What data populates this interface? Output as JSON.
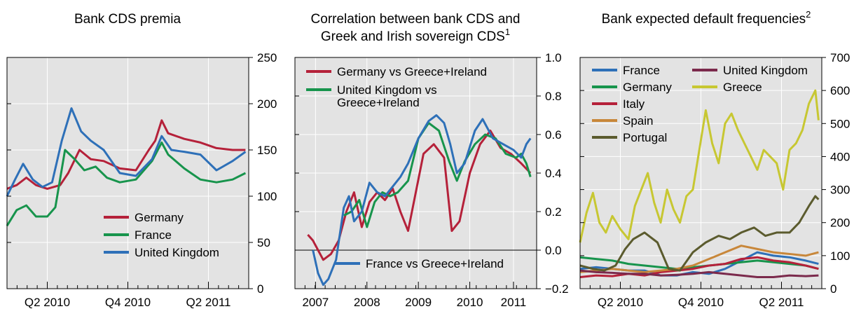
{
  "chart_data": [
    {
      "type": "line",
      "title": "Bank CDS premia",
      "title_superscript": "",
      "x_ticks": [
        "Q2 2010",
        "Q4 2010",
        "Q2 2011"
      ],
      "xlim": [
        2010.0,
        2011.5
      ],
      "ylim": [
        0,
        250
      ],
      "y_ticks": [
        0,
        50,
        100,
        150,
        200,
        250
      ],
      "y_axis": "right",
      "grid": true,
      "legend": "bottom-center",
      "series": [
        {
          "name": "Germany",
          "color": "#b5213a",
          "x": [
            2010.0,
            2010.06,
            2010.12,
            2010.18,
            2010.25,
            2010.33,
            2010.38,
            2010.45,
            2010.52,
            2010.6,
            2010.7,
            2010.8,
            2010.88,
            2010.92,
            2010.96,
            2011.0,
            2011.1,
            2011.2,
            2011.3,
            2011.4,
            2011.48
          ],
          "y": [
            108,
            112,
            120,
            112,
            108,
            112,
            125,
            150,
            140,
            138,
            130,
            128,
            150,
            160,
            182,
            168,
            162,
            158,
            152,
            150,
            150
          ]
        },
        {
          "name": "France",
          "color": "#17944c",
          "x": [
            2010.0,
            2010.06,
            2010.12,
            2010.18,
            2010.25,
            2010.3,
            2010.36,
            2010.42,
            2010.48,
            2010.55,
            2010.62,
            2010.7,
            2010.8,
            2010.9,
            2010.96,
            2011.0,
            2011.1,
            2011.2,
            2011.3,
            2011.4,
            2011.48
          ],
          "y": [
            68,
            85,
            90,
            78,
            78,
            88,
            150,
            140,
            128,
            132,
            120,
            115,
            118,
            138,
            158,
            145,
            130,
            118,
            115,
            118,
            125
          ]
        },
        {
          "name": "United Kingdom",
          "color": "#2e70b8",
          "x": [
            2010.0,
            2010.05,
            2010.1,
            2010.16,
            2010.22,
            2010.28,
            2010.34,
            2010.4,
            2010.46,
            2010.52,
            2010.6,
            2010.7,
            2010.8,
            2010.9,
            2010.96,
            2011.02,
            2011.1,
            2011.2,
            2011.3,
            2011.4,
            2011.48
          ],
          "y": [
            100,
            118,
            135,
            118,
            110,
            115,
            160,
            195,
            170,
            160,
            150,
            125,
            122,
            140,
            165,
            150,
            148,
            145,
            128,
            138,
            148
          ]
        }
      ]
    },
    {
      "type": "line",
      "title": "Correlation between bank CDS and Greek and Irish sovereign CDS",
      "title_superscript": "1",
      "x_ticks": [
        "2007",
        "2008",
        "2009",
        "2010",
        "2011"
      ],
      "xlim": [
        2006.6,
        2011.3
      ],
      "ylim": [
        -0.2,
        1.0
      ],
      "y_ticks": [
        -0.2,
        0.0,
        0.2,
        0.4,
        0.6,
        0.8,
        1.0
      ],
      "y_axis": "right",
      "grid": true,
      "legend": "top-left",
      "series": [
        {
          "name": "Germany vs Greece+Ireland",
          "color": "#b5213a",
          "x": [
            2006.85,
            2006.95,
            2007.05,
            2007.15,
            2007.3,
            2007.45,
            2007.6,
            2007.75,
            2007.9,
            2008.05,
            2008.2,
            2008.35,
            2008.5,
            2008.65,
            2008.8,
            2008.95,
            2009.1,
            2009.3,
            2009.5,
            2009.65,
            2009.8,
            2010.0,
            2010.2,
            2010.4,
            2010.6,
            2010.8,
            2011.0,
            2011.18
          ],
          "y": [
            0.08,
            0.05,
            0.0,
            -0.05,
            -0.02,
            0.05,
            0.2,
            0.3,
            0.12,
            0.25,
            0.3,
            0.26,
            0.32,
            0.2,
            0.1,
            0.3,
            0.5,
            0.55,
            0.48,
            0.1,
            0.15,
            0.4,
            0.55,
            0.62,
            0.53,
            0.5,
            0.45,
            0.4
          ]
        },
        {
          "name": "United Kingdom vs Greece+Ireland",
          "color": "#17944c",
          "x": [
            2007.55,
            2007.7,
            2007.85,
            2008.0,
            2008.15,
            2008.3,
            2008.45,
            2008.6,
            2008.8,
            2009.0,
            2009.2,
            2009.4,
            2009.6,
            2009.75,
            2009.9,
            2010.1,
            2010.3,
            2010.5,
            2010.7,
            2010.9,
            2011.0,
            2011.1,
            2011.18
          ],
          "y": [
            0.18,
            0.2,
            0.26,
            0.12,
            0.25,
            0.3,
            0.28,
            0.3,
            0.36,
            0.58,
            0.66,
            0.62,
            0.46,
            0.36,
            0.46,
            0.55,
            0.6,
            0.58,
            0.5,
            0.48,
            0.5,
            0.45,
            0.38
          ]
        }
      ]
    },
    {
      "type": "line",
      "title": "Bank expected default frequencies",
      "title_superscript": "2",
      "x_ticks": [
        "Q2 2010",
        "Q4 2010",
        "Q2 2011"
      ],
      "xlim": [
        2010.0,
        2011.5
      ],
      "ylim": [
        0,
        700
      ],
      "y_ticks": [
        0,
        100,
        200,
        300,
        400,
        500,
        600,
        700
      ],
      "y_axis": "right",
      "grid": true,
      "legend": "top-left",
      "series": [
        {
          "name": "France",
          "color": "#2e70b8",
          "x": [
            2010.0,
            2010.1,
            2010.2,
            2010.3,
            2010.4,
            2010.5,
            2010.6,
            2010.7,
            2010.8,
            2010.9,
            2011.0,
            2011.1,
            2011.2,
            2011.3,
            2011.4,
            2011.48
          ],
          "y": [
            60,
            65,
            60,
            55,
            55,
            40,
            40,
            50,
            45,
            60,
            85,
            110,
            100,
            95,
            85,
            75
          ]
        },
        {
          "name": "Germany",
          "color": "#17944c",
          "x": [
            2010.0,
            2010.1,
            2010.2,
            2010.3,
            2010.4,
            2010.5,
            2010.6,
            2010.7,
            2010.8,
            2010.9,
            2011.0,
            2011.1,
            2011.2,
            2011.3,
            2011.4,
            2011.48
          ],
          "y": [
            95,
            90,
            85,
            75,
            70,
            65,
            60,
            65,
            70,
            75,
            80,
            85,
            80,
            75,
            70,
            60
          ]
        },
        {
          "name": "Italy",
          "color": "#b5213a",
          "x": [
            2010.0,
            2010.1,
            2010.2,
            2010.3,
            2010.4,
            2010.5,
            2010.6,
            2010.7,
            2010.8,
            2010.9,
            2011.0,
            2011.1,
            2011.2,
            2011.3,
            2011.4,
            2011.48
          ],
          "y": [
            35,
            40,
            38,
            45,
            40,
            50,
            55,
            60,
            70,
            75,
            90,
            95,
            85,
            80,
            70,
            60
          ]
        },
        {
          "name": "Spain",
          "color": "#c8873a",
          "x": [
            2010.0,
            2010.1,
            2010.2,
            2010.3,
            2010.4,
            2010.5,
            2010.6,
            2010.7,
            2010.8,
            2010.9,
            2011.0,
            2011.1,
            2011.2,
            2011.3,
            2011.4,
            2011.48
          ],
          "y": [
            50,
            55,
            60,
            55,
            50,
            55,
            60,
            70,
            90,
            110,
            130,
            120,
            110,
            105,
            100,
            110
          ]
        },
        {
          "name": "Portugal",
          "color": "#5b5b2e",
          "x": [
            2010.0,
            2010.08,
            2010.15,
            2010.22,
            2010.28,
            2010.33,
            2010.4,
            2010.48,
            2010.55,
            2010.62,
            2010.7,
            2010.78,
            2010.86,
            2010.93,
            2011.0,
            2011.08,
            2011.15,
            2011.22,
            2011.3,
            2011.36,
            2011.42,
            2011.46,
            2011.48
          ],
          "y": [
            70,
            60,
            55,
            70,
            120,
            150,
            170,
            140,
            60,
            55,
            110,
            140,
            160,
            150,
            170,
            185,
            160,
            170,
            170,
            200,
            250,
            280,
            270
          ]
        },
        {
          "name": "United Kingdom",
          "color": "#7b2a4c",
          "x": [
            2010.0,
            2010.1,
            2010.2,
            2010.3,
            2010.4,
            2010.5,
            2010.6,
            2010.7,
            2010.8,
            2010.9,
            2011.0,
            2011.1,
            2011.2,
            2011.3,
            2011.4,
            2011.48
          ],
          "y": [
            55,
            50,
            48,
            45,
            45,
            40,
            42,
            45,
            50,
            45,
            40,
            35,
            35,
            40,
            38,
            40
          ]
        },
        {
          "name": "Greece",
          "color": "#c7c732",
          "x": [
            2010.0,
            2010.04,
            2010.08,
            2010.12,
            2010.16,
            2010.2,
            2010.25,
            2010.3,
            2010.34,
            2010.38,
            2010.42,
            2010.46,
            2010.5,
            2010.54,
            2010.58,
            2010.62,
            2010.66,
            2010.7,
            2010.74,
            2010.78,
            2010.82,
            2010.86,
            2010.9,
            2010.94,
            2010.98,
            2011.02,
            2011.06,
            2011.1,
            2011.14,
            2011.18,
            2011.22,
            2011.26,
            2011.3,
            2011.34,
            2011.38,
            2011.42,
            2011.46,
            2011.48
          ],
          "y": [
            140,
            230,
            290,
            200,
            170,
            220,
            180,
            150,
            250,
            300,
            350,
            260,
            200,
            300,
            240,
            200,
            280,
            300,
            420,
            540,
            440,
            380,
            500,
            530,
            480,
            440,
            400,
            360,
            420,
            400,
            380,
            300,
            420,
            440,
            480,
            560,
            600,
            510
          ]
        }
      ]
    }
  ]
}
